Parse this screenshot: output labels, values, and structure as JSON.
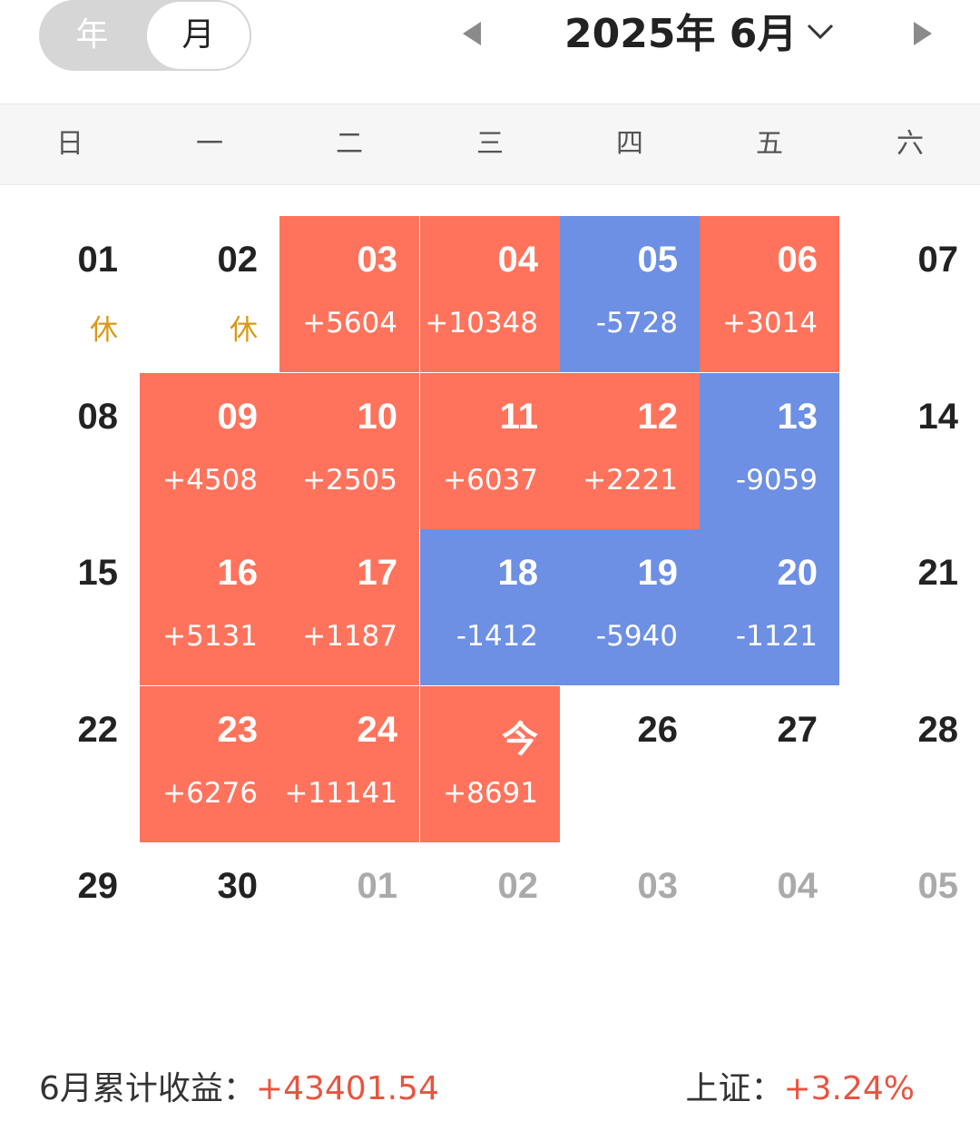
{
  "toggle": {
    "year_label": "年",
    "month_label": "月",
    "selected": "月"
  },
  "header": {
    "month_title": "2025年 6月"
  },
  "weekdays": [
    "日",
    "一",
    "二",
    "三",
    "四",
    "五",
    "六"
  ],
  "colors": {
    "gain": "#ff735c",
    "loss": "#6d8fe4",
    "rest": "#d89a16",
    "summary_value": "#e8543f"
  },
  "weeks": [
    [
      {
        "day": "01",
        "sub": "休",
        "type": "rest"
      },
      {
        "day": "02",
        "sub": "休",
        "type": "rest"
      },
      {
        "day": "03",
        "sub": "+5604",
        "type": "gain"
      },
      {
        "day": "04",
        "sub": "+10348",
        "type": "gain"
      },
      {
        "day": "05",
        "sub": "-5728",
        "type": "loss"
      },
      {
        "day": "06",
        "sub": "+3014",
        "type": "gain"
      },
      {
        "day": "07",
        "sub": "",
        "type": "plain"
      }
    ],
    [
      {
        "day": "08",
        "sub": "",
        "type": "plain"
      },
      {
        "day": "09",
        "sub": "+4508",
        "type": "gain"
      },
      {
        "day": "10",
        "sub": "+2505",
        "type": "gain"
      },
      {
        "day": "11",
        "sub": "+6037",
        "type": "gain"
      },
      {
        "day": "12",
        "sub": "+2221",
        "type": "gain"
      },
      {
        "day": "13",
        "sub": "-9059",
        "type": "loss"
      },
      {
        "day": "14",
        "sub": "",
        "type": "plain"
      }
    ],
    [
      {
        "day": "15",
        "sub": "",
        "type": "plain"
      },
      {
        "day": "16",
        "sub": "+5131",
        "type": "gain"
      },
      {
        "day": "17",
        "sub": "+1187",
        "type": "gain"
      },
      {
        "day": "18",
        "sub": "-1412",
        "type": "loss"
      },
      {
        "day": "19",
        "sub": "-5940",
        "type": "loss"
      },
      {
        "day": "20",
        "sub": "-1121",
        "type": "loss"
      },
      {
        "day": "21",
        "sub": "",
        "type": "plain"
      }
    ],
    [
      {
        "day": "22",
        "sub": "",
        "type": "plain"
      },
      {
        "day": "23",
        "sub": "+6276",
        "type": "gain"
      },
      {
        "day": "24",
        "sub": "+11141",
        "type": "gain"
      },
      {
        "day": "今",
        "sub": "+8691",
        "type": "gain"
      },
      {
        "day": "26",
        "sub": "",
        "type": "plain"
      },
      {
        "day": "27",
        "sub": "",
        "type": "plain"
      },
      {
        "day": "28",
        "sub": "",
        "type": "plain"
      }
    ],
    [
      {
        "day": "29",
        "sub": "",
        "type": "plain"
      },
      {
        "day": "30",
        "sub": "",
        "type": "plain"
      },
      {
        "day": "01",
        "sub": "",
        "type": "other"
      },
      {
        "day": "02",
        "sub": "",
        "type": "other"
      },
      {
        "day": "03",
        "sub": "",
        "type": "other"
      },
      {
        "day": "04",
        "sub": "",
        "type": "other"
      },
      {
        "day": "05",
        "sub": "",
        "type": "other"
      }
    ]
  ],
  "summary": {
    "month_label": "6月累计收益：",
    "month_value": "+43401.54",
    "index_label": "上证：",
    "index_value": "+3.24%"
  }
}
